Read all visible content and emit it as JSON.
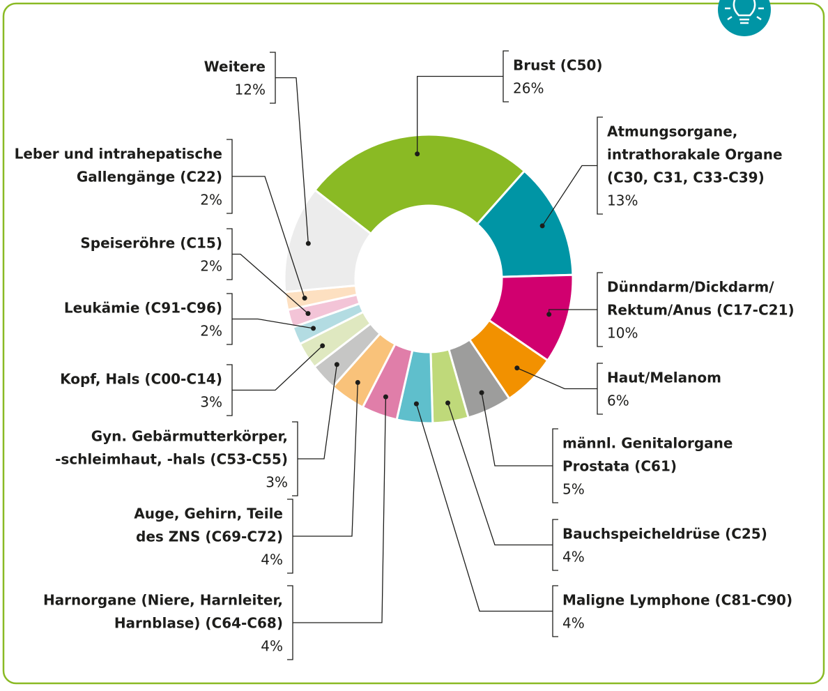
{
  "chart_data": {
    "type": "donut",
    "categories": [
      [
        "Brust (C50)"
      ],
      [
        "Atmungsorgane,",
        "intrathorakale Organe",
        "(C30, C31, C33-C39)"
      ],
      [
        "Dünndarm/Dickdarm/",
        "Rektum/Anus (C17-C21)"
      ],
      [
        "Haut/Melanom"
      ],
      [
        "männl. Genitalorgane",
        "Prostata (C61)"
      ],
      [
        "Bauchspeicheldrüse (C25)"
      ],
      [
        "Maligne Lymphone (C81-C90)"
      ],
      [
        "Harnorgane (Niere, Harnleiter,",
        "Harnblase) (C64-C68)"
      ],
      [
        "Auge, Gehirn, Teile",
        "des ZNS (C69-C72)"
      ],
      [
        "Gyn. Gebärmutterkörper,",
        "-schleimhaut, -hals (C53-C55)"
      ],
      [
        "Kopf, Hals (C00-C14)"
      ],
      [
        "Leukämie (C91-C96)"
      ],
      [
        "Speiseröhre (C15)"
      ],
      [
        "Leber und intrahepatische",
        "Gallengänge (C22)"
      ],
      [
        "Weitere"
      ]
    ],
    "values": [
      26,
      13,
      10,
      6,
      5,
      4,
      4,
      4,
      4,
      3,
      3,
      2,
      2,
      2,
      12
    ],
    "value_labels": [
      "26%",
      "13%",
      "10%",
      "6%",
      "5%",
      "4%",
      "4%",
      "4%",
      "4%",
      "3%",
      "3%",
      "2%",
      "2%",
      "2%",
      "12%"
    ],
    "colors": [
      "#8aba24",
      "#0095a5",
      "#d1006f",
      "#f29100",
      "#9d9d9c",
      "#bfd97a",
      "#5fbfcc",
      "#e07ea9",
      "#f9c27a",
      "#c6c6c5",
      "#dfe8c0",
      "#b3dce2",
      "#f3c4d7",
      "#fde0c1",
      "#ececec"
    ]
  }
}
